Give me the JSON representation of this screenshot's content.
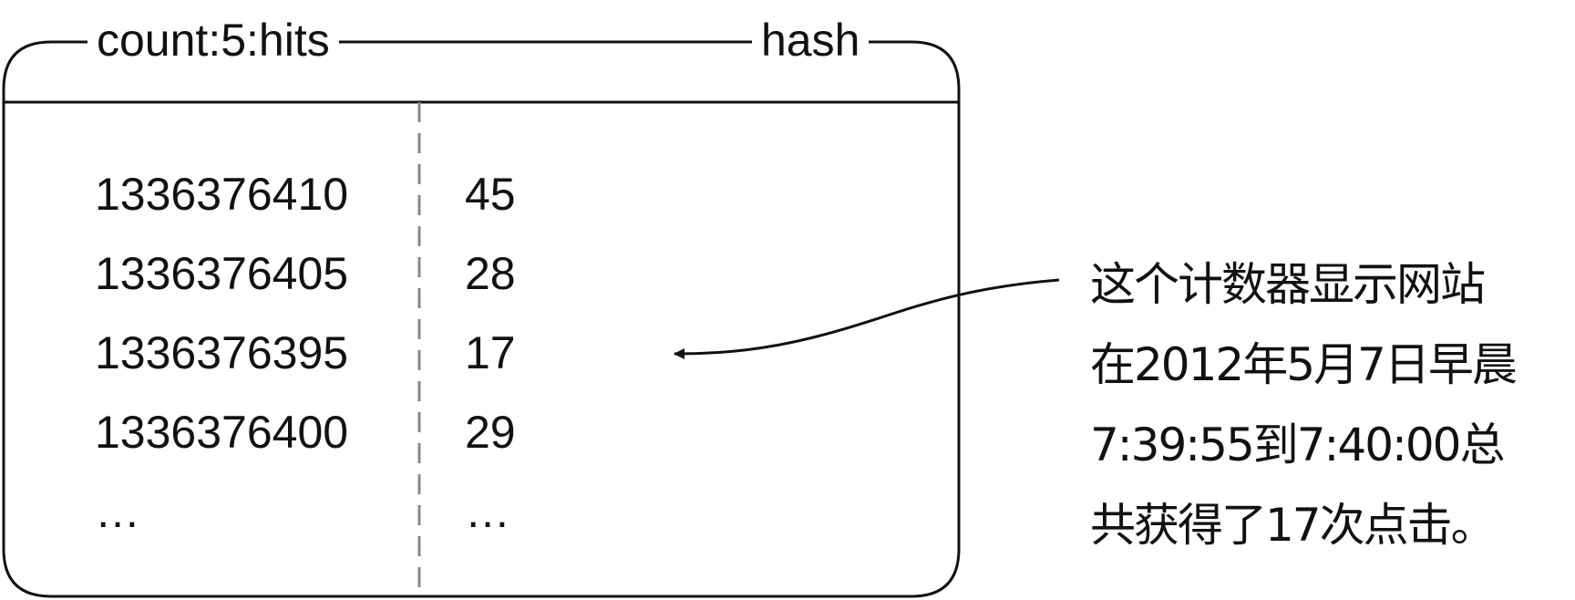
{
  "structure": {
    "key_name": "count:5:hits",
    "type_name": "hash"
  },
  "rows": [
    {
      "field": "1336376410",
      "value": "45"
    },
    {
      "field": "1336376405",
      "value": "28"
    },
    {
      "field": "1336376395",
      "value": "17"
    },
    {
      "field": "1336376400",
      "value": "29"
    },
    {
      "field": "…",
      "value": "…"
    }
  ],
  "annotation": {
    "lines": [
      "这个计数器显示网站",
      "在2012年5月7日早晨",
      "7:39:55到7:40:00总",
      "共获得了17次点击。"
    ]
  },
  "colors": {
    "line": "#111111",
    "divider_dash": "#888888"
  }
}
